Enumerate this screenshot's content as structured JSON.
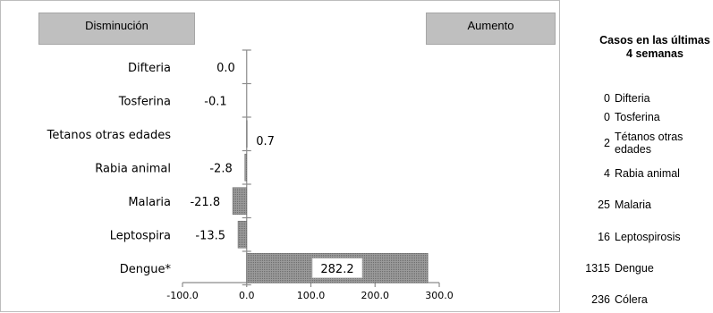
{
  "header": {
    "decrease_label": "Disminución",
    "increase_label": "Aumento"
  },
  "chart_data": {
    "type": "bar",
    "orientation": "horizontal",
    "categories": [
      "Difteria",
      "Tosferina",
      "Tetanos otras edades",
      "Rabia animal",
      "Malaria",
      "Leptospira",
      "Dengue*"
    ],
    "values": [
      0.0,
      -0.1,
      0.7,
      -2.8,
      -21.8,
      -13.5,
      282.2
    ],
    "value_labels": [
      "0.0",
      "-0.1",
      "0.7",
      "-2.8",
      "-21.8",
      "-13.5",
      "282.2"
    ],
    "xlim": [
      -100,
      300
    ],
    "x_ticks": [
      -100,
      0,
      100,
      200,
      300
    ],
    "x_tick_labels": [
      "-100.0",
      "0.0",
      "100.0",
      "200.0",
      "300.0"
    ],
    "bar_color": "#8c8c8c",
    "grid": false
  },
  "sidebar": {
    "title": "Casos en las últimas 4 semanas",
    "rows": [
      {
        "count": "0",
        "name": "Difteria"
      },
      {
        "count": "0",
        "name": "Tosferina"
      },
      {
        "count": "2",
        "name": "Tétanos otras edades"
      },
      {
        "count": "4",
        "name": "Rabia animal"
      },
      {
        "count": "25",
        "name": "Malaria"
      },
      {
        "count": "16",
        "name": "Leptospirosis"
      },
      {
        "count": "1315",
        "name": "Dengue"
      },
      {
        "count": "236",
        "name": "Cólera"
      }
    ]
  }
}
